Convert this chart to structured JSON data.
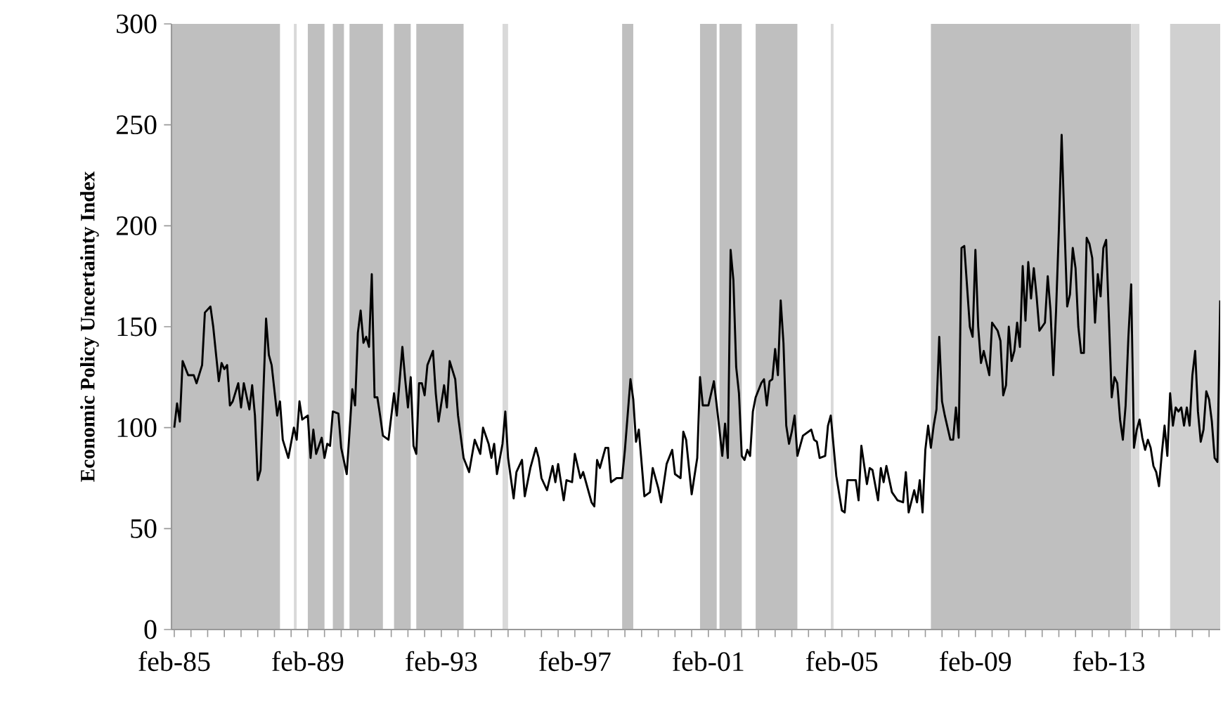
{
  "chart_data": {
    "type": "line",
    "ylabel": "Economic Policy Uncertainty Index",
    "xlim": [
      "1985-01",
      "2016-06"
    ],
    "ylim": [
      0,
      300
    ],
    "yticks": [
      0,
      50,
      100,
      150,
      200,
      250,
      300
    ],
    "xticks": [
      {
        "value": "1985-02",
        "label": "feb-85"
      },
      {
        "value": "1985-08",
        "label": null
      },
      {
        "value": "1986-02",
        "label": null
      },
      {
        "value": "1986-08",
        "label": null
      },
      {
        "value": "1987-02",
        "label": null
      },
      {
        "value": "1987-08",
        "label": null
      },
      {
        "value": "1988-02",
        "label": null
      },
      {
        "value": "1988-08",
        "label": null
      },
      {
        "value": "1989-02",
        "label": "feb-89"
      },
      {
        "value": "1989-08",
        "label": null
      },
      {
        "value": "1990-02",
        "label": null
      },
      {
        "value": "1990-08",
        "label": null
      },
      {
        "value": "1991-02",
        "label": null
      },
      {
        "value": "1991-08",
        "label": null
      },
      {
        "value": "1992-02",
        "label": null
      },
      {
        "value": "1992-08",
        "label": null
      },
      {
        "value": "1993-02",
        "label": "feb-93"
      },
      {
        "value": "1993-08",
        "label": null
      },
      {
        "value": "1994-02",
        "label": null
      },
      {
        "value": "1994-08",
        "label": null
      },
      {
        "value": "1995-02",
        "label": null
      },
      {
        "value": "1995-08",
        "label": null
      },
      {
        "value": "1996-02",
        "label": null
      },
      {
        "value": "1996-08",
        "label": null
      },
      {
        "value": "1997-02",
        "label": "feb-97"
      },
      {
        "value": "1997-08",
        "label": null
      },
      {
        "value": "1998-02",
        "label": null
      },
      {
        "value": "1998-08",
        "label": null
      },
      {
        "value": "1999-02",
        "label": null
      },
      {
        "value": "1999-08",
        "label": null
      },
      {
        "value": "2000-02",
        "label": null
      },
      {
        "value": "2000-08",
        "label": null
      },
      {
        "value": "2001-02",
        "label": "feb-01"
      },
      {
        "value": "2001-08",
        "label": null
      },
      {
        "value": "2002-02",
        "label": null
      },
      {
        "value": "2002-08",
        "label": null
      },
      {
        "value": "2003-02",
        "label": null
      },
      {
        "value": "2003-08",
        "label": null
      },
      {
        "value": "2004-02",
        "label": null
      },
      {
        "value": "2004-08",
        "label": null
      },
      {
        "value": "2005-02",
        "label": "feb-05"
      },
      {
        "value": "2005-08",
        "label": null
      },
      {
        "value": "2006-02",
        "label": null
      },
      {
        "value": "2006-08",
        "label": null
      },
      {
        "value": "2007-02",
        "label": null
      },
      {
        "value": "2007-08",
        "label": null
      },
      {
        "value": "2008-02",
        "label": null
      },
      {
        "value": "2008-08",
        "label": null
      },
      {
        "value": "2009-02",
        "label": "feb-09"
      },
      {
        "value": "2009-08",
        "label": null
      },
      {
        "value": "2010-02",
        "label": null
      },
      {
        "value": "2010-08",
        "label": null
      },
      {
        "value": "2011-02",
        "label": null
      },
      {
        "value": "2011-08",
        "label": null
      },
      {
        "value": "2012-02",
        "label": null
      },
      {
        "value": "2012-08",
        "label": null
      },
      {
        "value": "2013-02",
        "label": "feb-13"
      },
      {
        "value": "2013-08",
        "label": null
      },
      {
        "value": "2014-02",
        "label": null
      },
      {
        "value": "2014-08",
        "label": null
      },
      {
        "value": "2015-02",
        "label": null
      },
      {
        "value": "2015-08",
        "label": null
      },
      {
        "value": "2016-02",
        "label": null
      }
    ],
    "bands": [
      {
        "axis": "x",
        "from": "1985-01",
        "to": "1988-04",
        "color": "#bfbfbf"
      },
      {
        "axis": "x",
        "from": "1988-09",
        "to": "1988-10",
        "color": "#d9d9d9"
      },
      {
        "axis": "x",
        "from": "1989-02",
        "to": "1989-08",
        "color": "#bfbfbf"
      },
      {
        "axis": "x",
        "from": "1989-11",
        "to": "1990-03",
        "color": "#bfbfbf"
      },
      {
        "axis": "x",
        "from": "1990-05",
        "to": "1991-05",
        "color": "#bfbfbf"
      },
      {
        "axis": "x",
        "from": "1991-09",
        "to": "1992-03",
        "color": "#bfbfbf"
      },
      {
        "axis": "x",
        "from": "1992-05",
        "to": "1993-10",
        "color": "#bfbfbf"
      },
      {
        "axis": "x",
        "from": "1994-12",
        "to": "1995-02",
        "color": "#d9d9d9"
      },
      {
        "axis": "x",
        "from": "1998-07",
        "to": "1998-11",
        "color": "#bfbfbf"
      },
      {
        "axis": "x",
        "from": "2000-11",
        "to": "2001-05",
        "color": "#bfbfbf"
      },
      {
        "axis": "x",
        "from": "2001-06",
        "to": "2002-02",
        "color": "#bfbfbf"
      },
      {
        "axis": "x",
        "from": "2002-07",
        "to": "2003-10",
        "color": "#bfbfbf"
      },
      {
        "axis": "x",
        "from": "2004-10",
        "to": "2004-11",
        "color": "#d9d9d9"
      },
      {
        "axis": "x",
        "from": "2007-10",
        "to": "2013-10",
        "color": "#bfbfbf"
      },
      {
        "axis": "x",
        "from": "2013-10",
        "to": "2014-01",
        "color": "#d9d9d9"
      },
      {
        "axis": "x",
        "from": "2014-12",
        "to": "2016-06",
        "color": "#d0d0d0"
      }
    ],
    "series": [
      {
        "color": "#000000",
        "x": [
          "1985-02",
          "1985-03",
          "1985-04",
          "1985-05",
          "1985-07",
          "1985-09",
          "1985-10",
          "1985-12",
          "1986-01",
          "1986-03",
          "1986-04",
          "1986-06",
          "1986-07",
          "1986-08",
          "1986-09",
          "1986-10",
          "1986-11",
          "1987-01",
          "1987-02",
          "1987-03",
          "1987-05",
          "1987-06",
          "1987-07",
          "1987-08",
          "1987-09",
          "1987-11",
          "1987-12",
          "1988-01",
          "1988-03",
          "1988-04",
          "1988-05",
          "1988-07",
          "1988-09",
          "1988-10",
          "1988-11",
          "1988-12",
          "1989-02",
          "1989-03",
          "1989-04",
          "1989-05",
          "1989-07",
          "1989-08",
          "1989-09",
          "1989-10",
          "1989-11",
          "1990-01",
          "1990-02",
          "1990-04",
          "1990-06",
          "1990-07",
          "1990-08",
          "1990-09",
          "1990-10",
          "1990-11",
          "1990-12",
          "1991-01",
          "1991-02",
          "1991-03",
          "1991-04",
          "1991-05",
          "1991-07",
          "1991-09",
          "1991-10",
          "1991-12",
          "1992-01",
          "1992-02",
          "1992-03",
          "1992-04",
          "1992-05",
          "1992-06",
          "1992-07",
          "1992-08",
          "1992-09",
          "1992-11",
          "1992-12",
          "1993-01",
          "1993-03",
          "1993-04",
          "1993-05",
          "1993-07",
          "1993-08",
          "1993-10",
          "1993-12",
          "1994-02",
          "1994-04",
          "1994-05",
          "1994-07",
          "1994-08",
          "1994-09",
          "1994-10",
          "1994-12",
          "1995-01",
          "1995-02",
          "1995-04",
          "1995-05",
          "1995-07",
          "1995-08",
          "1995-10",
          "1995-12",
          "1996-01",
          "1996-02",
          "1996-04",
          "1996-06",
          "1996-07",
          "1996-08",
          "1996-10",
          "1996-11",
          "1997-01",
          "1997-02",
          "1997-04",
          "1997-05",
          "1997-06",
          "1997-08",
          "1997-09",
          "1997-10",
          "1997-11",
          "1998-01",
          "1998-02",
          "1998-03",
          "1998-05",
          "1998-07",
          "1998-08",
          "1998-10",
          "1998-11",
          "1998-12",
          "1999-01",
          "1999-03",
          "1999-05",
          "1999-06",
          "1999-08",
          "1999-09",
          "1999-11",
          "2000-01",
          "2000-02",
          "2000-04",
          "2000-05",
          "2000-06",
          "2000-08",
          "2000-10",
          "2000-11",
          "2000-12",
          "2001-02",
          "2001-04",
          "2001-06",
          "2001-07",
          "2001-08",
          "2001-09",
          "2001-10",
          "2001-11",
          "2001-12",
          "2002-01",
          "2002-02",
          "2002-03",
          "2002-04",
          "2002-05",
          "2002-06",
          "2002-07",
          "2002-09",
          "2002-10",
          "2002-11",
          "2002-12",
          "2003-01",
          "2003-02",
          "2003-03",
          "2003-04",
          "2003-05",
          "2003-06",
          "2003-07",
          "2003-08",
          "2003-09",
          "2003-10",
          "2003-12",
          "2004-03",
          "2004-04",
          "2004-05",
          "2004-06",
          "2004-08",
          "2004-09",
          "2004-10",
          "2004-12",
          "2005-02",
          "2005-03",
          "2005-04",
          "2005-06",
          "2005-07",
          "2005-08",
          "2005-09",
          "2005-11",
          "2005-12",
          "2006-01",
          "2006-03",
          "2006-04",
          "2006-05",
          "2006-06",
          "2006-08",
          "2006-10",
          "2006-12",
          "2007-01",
          "2007-02",
          "2007-04",
          "2007-05",
          "2007-06",
          "2007-07",
          "2007-08",
          "2007-09",
          "2007-10",
          "2007-11",
          "2007-12",
          "2008-01",
          "2008-02",
          "2008-03",
          "2008-05",
          "2008-06",
          "2008-07",
          "2008-08",
          "2008-09",
          "2008-10",
          "2008-12",
          "2009-01",
          "2009-02",
          "2009-03",
          "2009-04",
          "2009-05",
          "2009-07",
          "2009-08",
          "2009-10",
          "2009-11",
          "2009-12",
          "2010-01",
          "2010-02",
          "2010-03",
          "2010-04",
          "2010-05",
          "2010-06",
          "2010-07",
          "2010-08",
          "2010-09",
          "2010-10",
          "2010-11",
          "2010-12",
          "2011-01",
          "2011-03",
          "2011-04",
          "2011-05",
          "2011-06",
          "2011-07",
          "2011-08",
          "2011-09",
          "2011-10",
          "2011-11",
          "2011-12",
          "2012-01",
          "2012-02",
          "2012-03",
          "2012-04",
          "2012-05",
          "2012-06",
          "2012-07",
          "2012-08",
          "2012-09",
          "2012-10",
          "2012-11",
          "2012-12",
          "2013-01",
          "2013-02",
          "2013-03",
          "2013-04",
          "2013-05",
          "2013-06",
          "2013-07",
          "2013-08",
          "2013-09",
          "2013-10",
          "2013-11",
          "2013-12",
          "2014-01",
          "2014-02",
          "2014-03",
          "2014-04",
          "2014-05",
          "2014-06",
          "2014-07",
          "2014-08",
          "2014-09",
          "2014-10",
          "2014-11",
          "2014-12",
          "2015-01",
          "2015-02",
          "2015-03",
          "2015-04",
          "2015-05",
          "2015-06",
          "2015-07",
          "2015-08",
          "2015-09",
          "2015-10",
          "2015-11",
          "2015-12",
          "2016-01",
          "2016-02",
          "2016-03",
          "2016-04",
          "2016-05",
          "2016-06"
        ],
        "values": [
          100,
          112,
          103,
          133,
          126,
          126,
          122,
          131,
          157,
          160,
          150,
          123,
          132,
          129,
          131,
          111,
          113,
          122,
          110,
          122,
          109,
          121,
          106,
          74,
          79,
          154,
          136,
          131,
          106,
          113,
          94,
          85,
          100,
          94,
          113,
          104,
          106,
          85,
          99,
          87,
          95,
          85,
          92,
          91,
          108,
          107,
          90,
          77,
          119,
          111,
          147,
          158,
          142,
          145,
          140,
          176,
          115,
          115,
          106,
          96,
          94,
          117,
          106,
          140,
          124,
          110,
          125,
          91,
          87,
          122,
          122,
          116,
          131,
          138,
          117,
          103,
          121,
          110,
          133,
          124,
          106,
          85,
          78,
          94,
          87,
          100,
          92,
          85,
          92,
          77,
          92,
          108,
          85,
          65,
          78,
          84,
          66,
          80,
          90,
          85,
          75,
          69,
          81,
          73,
          82,
          64,
          74,
          73,
          87,
          75,
          78,
          73,
          63,
          61,
          84,
          80,
          90,
          90,
          73,
          75,
          75,
          89,
          124,
          114,
          93,
          99,
          66,
          68,
          80,
          70,
          63,
          82,
          89,
          77,
          75,
          98,
          94,
          67,
          85,
          125,
          111,
          111,
          123,
          99,
          86,
          102,
          85,
          188,
          173,
          130,
          117,
          86,
          84,
          89,
          86,
          108,
          115,
          122,
          124,
          111,
          123,
          124,
          139,
          126,
          163,
          142,
          101,
          92,
          98,
          106,
          86,
          96,
          99,
          94,
          93,
          85,
          86,
          101,
          106,
          76,
          59,
          58,
          74,
          74,
          74,
          64,
          91,
          72,
          80,
          79,
          64,
          80,
          73,
          81,
          68,
          64,
          63,
          78,
          58,
          69,
          63,
          74,
          58,
          89,
          101,
          90,
          101,
          109,
          145,
          113,
          106,
          94,
          94,
          110,
          95,
          189,
          190,
          150,
          145,
          188,
          150,
          132,
          138,
          126,
          152,
          148,
          143,
          116,
          121,
          150,
          133,
          138,
          152,
          140,
          180,
          153,
          182,
          164,
          179,
          165,
          148,
          152,
          175,
          158,
          126,
          158,
          198,
          245,
          201,
          160,
          166,
          189,
          179,
          150,
          137,
          137,
          194,
          191,
          184,
          152,
          176,
          165,
          189,
          193,
          154,
          115,
          125,
          122,
          104,
          94,
          111,
          145,
          171,
          90,
          99,
          104,
          95,
          89,
          94,
          90,
          81,
          78,
          71,
          87,
          101,
          86,
          117,
          101,
          110,
          108,
          110,
          101,
          110,
          101,
          126,
          138,
          108,
          93,
          99,
          118,
          114,
          103,
          85,
          83,
          163
        ]
      }
    ]
  }
}
